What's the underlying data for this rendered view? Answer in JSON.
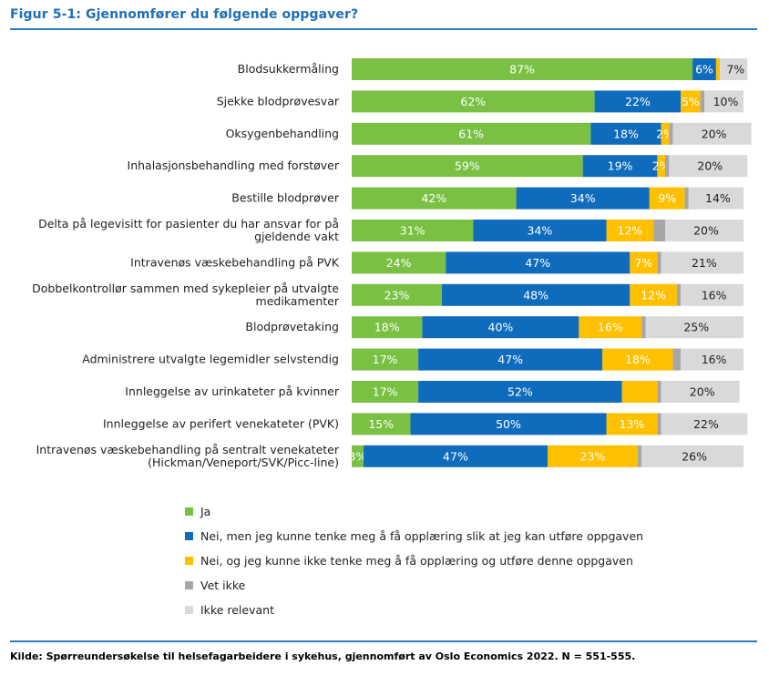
{
  "title": "Figur 5-1: Gjennomfører du følgende oppgaver?",
  "source": "Kilde: Spørreundersøkelse til helsefagarbeidere i sykehus, gjennomført av Oslo Economics 2022. N = 551-555.",
  "colors": {
    "Ja": "#7ac143",
    "Nei_kan": "#0f6cbd",
    "Nei_ikke": "#ffc000",
    "Vet_ikke": "#a6a6a6",
    "Ikke_relevant": "#d9d9d9",
    "title": "#1f6fb5"
  },
  "chart_data": {
    "type": "bar",
    "orientation": "horizontal",
    "stacked": true,
    "title": "Figur 5-1: Gjennomfører du følgende oppgaver?",
    "xlim": [
      0,
      100
    ],
    "legend_position": "bottom",
    "categories": [
      "Blodsukkermåling",
      "Sjekke blodprøvesvar",
      "Oksygenbehandling",
      "Inhalasjonsbehandling med forstøver",
      "Bestille blodprøver",
      "Delta på legevisitt for pasienter du har ansvar for på gjeldende vakt",
      "Intravenøs væskebehandling på PVK",
      "Dobbelkontrollør sammen med sykepleier på utvalgte medikamenter",
      "Blodprøvetaking",
      "Administrere utvalgte legemidler selvstendig",
      "Innleggelse av urinkateter på kvinner",
      "Innleggelse av perifert venekateter (PVK)",
      "Intravenøs væskebehandling på sentralt venekateter (Hickman/Veneport/SVK/Picc-line)"
    ],
    "category_lines": [
      [
        "Blodsukkermåling"
      ],
      [
        "Sjekke blodprøvesvar"
      ],
      [
        "Oksygenbehandling"
      ],
      [
        "Inhalasjonsbehandling med forstøver"
      ],
      [
        "Bestille blodprøver"
      ],
      [
        "Delta på legevisitt for pasienter du har ansvar for på",
        "gjeldende vakt"
      ],
      [
        "Intravenøs væskebehandling på PVK"
      ],
      [
        "Dobbelkontrollør sammen med sykepleier på utvalgte",
        "medikamenter"
      ],
      [
        "Blodprøvetaking"
      ],
      [
        "Administrere utvalgte legemidler selvstendig"
      ],
      [
        "Innleggelse av urinkateter på kvinner"
      ],
      [
        "Innleggelse av perifert venekateter (PVK)"
      ],
      [
        "Intravenøs væskebehandling på sentralt venekateter",
        "(Hickman/Veneport/SVK/Picc-line)"
      ]
    ],
    "series": [
      {
        "name": "Ja",
        "color": "#7ac143",
        "label_color": "#ffffff",
        "values": [
          87,
          62,
          61,
          59,
          42,
          31,
          24,
          23,
          18,
          17,
          17,
          15,
          3
        ]
      },
      {
        "name": "Nei, men jeg kunne tenke meg å få opplæring slik at jeg kan utføre oppgaven",
        "color": "#0f6cbd",
        "label_color": "#ffffff",
        "values": [
          6,
          22,
          18,
          19,
          34,
          34,
          47,
          48,
          40,
          47,
          52,
          50,
          47
        ]
      },
      {
        "name": "Nei, og jeg kunne ikke tenke meg å få opplæring og utføre denne oppgaven",
        "color": "#ffc000",
        "label_color": "#ffffff",
        "values": [
          1,
          5,
          2,
          2,
          9,
          12,
          7,
          12,
          16,
          18,
          9,
          13,
          23
        ]
      },
      {
        "name": "Vet ikke",
        "color": "#a6a6a6",
        "label_color": "#ffffff",
        "values": [
          0,
          1,
          1,
          1,
          1,
          3,
          1,
          1,
          1,
          2,
          1,
          1,
          1
        ]
      },
      {
        "name": "Ikke relevant",
        "color": "#d9d9d9",
        "label_color": "#222222",
        "values": [
          7,
          10,
          20,
          20,
          14,
          20,
          21,
          16,
          25,
          16,
          20,
          22,
          26
        ]
      }
    ],
    "data_labels": [
      [
        "87%",
        "6%",
        "",
        "",
        "7%"
      ],
      [
        "62%",
        "22%",
        "5%",
        "",
        "10%"
      ],
      [
        "61%",
        "18%",
        "2%",
        "",
        "20%"
      ],
      [
        "59%",
        "19%",
        "2%",
        "",
        "20%"
      ],
      [
        "42%",
        "34%",
        "9%",
        "",
        "14%"
      ],
      [
        "31%",
        "34%",
        "12%",
        "",
        "20%"
      ],
      [
        "24%",
        "47%",
        "7%",
        "",
        "21%"
      ],
      [
        "23%",
        "48%",
        "12%",
        "",
        "16%"
      ],
      [
        "18%",
        "40%",
        "16%",
        "",
        "25%"
      ],
      [
        "17%",
        "47%",
        "18%",
        "",
        "16%"
      ],
      [
        "17%",
        "52%",
        "",
        "",
        "20%"
      ],
      [
        "15%",
        "50%",
        "13%",
        "",
        "22%"
      ],
      [
        "3%",
        "47%",
        "23%",
        "",
        "26%"
      ]
    ]
  }
}
